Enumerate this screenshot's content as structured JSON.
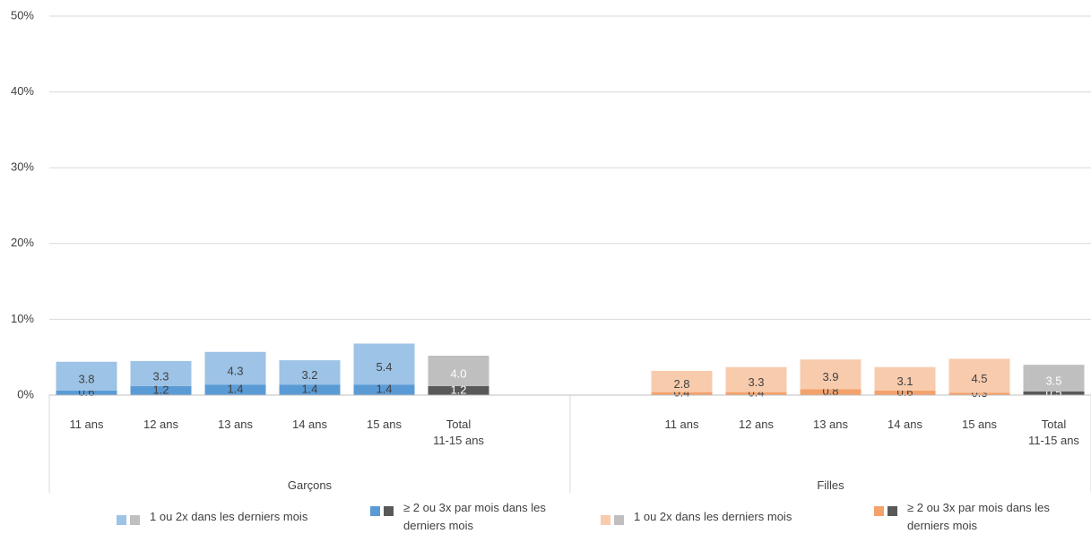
{
  "chart_data": {
    "type": "stacked-bar",
    "categories": [
      "11 ans",
      "12 ans",
      "13 ans",
      "14 ans",
      "15 ans",
      "Total\n11-15 ans",
      null,
      null,
      "11 ans",
      "12 ans",
      "13 ans",
      "14 ans",
      "15 ans",
      "Total\n11-15 ans"
    ],
    "groups": [
      {
        "name": "Garçons",
        "count": 7
      },
      {
        "name": "Filles",
        "count": 7
      }
    ],
    "series": [
      {
        "name": "≥ 2 ou 3x par mois dans les derniers mois",
        "color": "#5b9bd5",
        "total_color": "#595959",
        "values": [
          0.6,
          1.2,
          1.4,
          1.4,
          1.4,
          1.2,
          null,
          null,
          null,
          null,
          null,
          null,
          null,
          null
        ],
        "value_labels": [
          "0.6",
          "1.2",
          "1.4",
          "1.4",
          "1.4",
          "1.2",
          null,
          null,
          null,
          null,
          null,
          null,
          null,
          null
        ]
      },
      {
        "name": "1 ou 2x dans les derniers mois",
        "color": "#9dc3e6",
        "total_color": "#bfbfbf",
        "values": [
          3.8,
          3.3,
          4.3,
          3.2,
          5.4,
          4.0,
          null,
          null,
          null,
          null,
          null,
          null,
          null,
          null
        ],
        "value_labels": [
          "3.8",
          "3.3",
          "4.3",
          "3.2",
          "5.4",
          "4.0",
          null,
          null,
          null,
          null,
          null,
          null,
          null,
          null
        ]
      },
      {
        "name": "≥ 2 ou 3x par mois dans les derniers mois",
        "color": "#f4a26b",
        "total_color": "#595959",
        "values": [
          null,
          null,
          null,
          null,
          null,
          null,
          null,
          null,
          0.4,
          0.4,
          0.8,
          0.6,
          0.3,
          0.5
        ],
        "value_labels": [
          null,
          null,
          null,
          null,
          null,
          null,
          null,
          null,
          "0.4",
          "0.4",
          "0.8",
          "0.6",
          "0.3",
          "0.5"
        ]
      },
      {
        "name": "1 ou 2x dans les derniers mois",
        "color": "#f8cbad",
        "total_color": "#bfbfbf",
        "values": [
          null,
          null,
          null,
          null,
          null,
          null,
          null,
          null,
          2.8,
          3.3,
          3.9,
          3.1,
          4.5,
          3.5
        ],
        "value_labels": [
          null,
          null,
          null,
          null,
          null,
          null,
          null,
          null,
          "2.8",
          "3.3",
          "3.9",
          "3.1",
          "4.5",
          "3.5"
        ]
      }
    ],
    "stacks": [
      [
        0,
        1
      ],
      [
        2,
        3
      ]
    ],
    "legend_order": [
      1,
      0,
      3,
      2
    ],
    "ylim": [
      0,
      50
    ],
    "yticks": [
      {
        "value": 0,
        "label": "0%"
      },
      {
        "value": 10,
        "label": "10%"
      },
      {
        "value": 20,
        "label": "20%"
      },
      {
        "value": 30,
        "label": "30%"
      },
      {
        "value": 40,
        "label": "40%"
      },
      {
        "value": 50,
        "label": "50%"
      }
    ],
    "grid": true
  }
}
